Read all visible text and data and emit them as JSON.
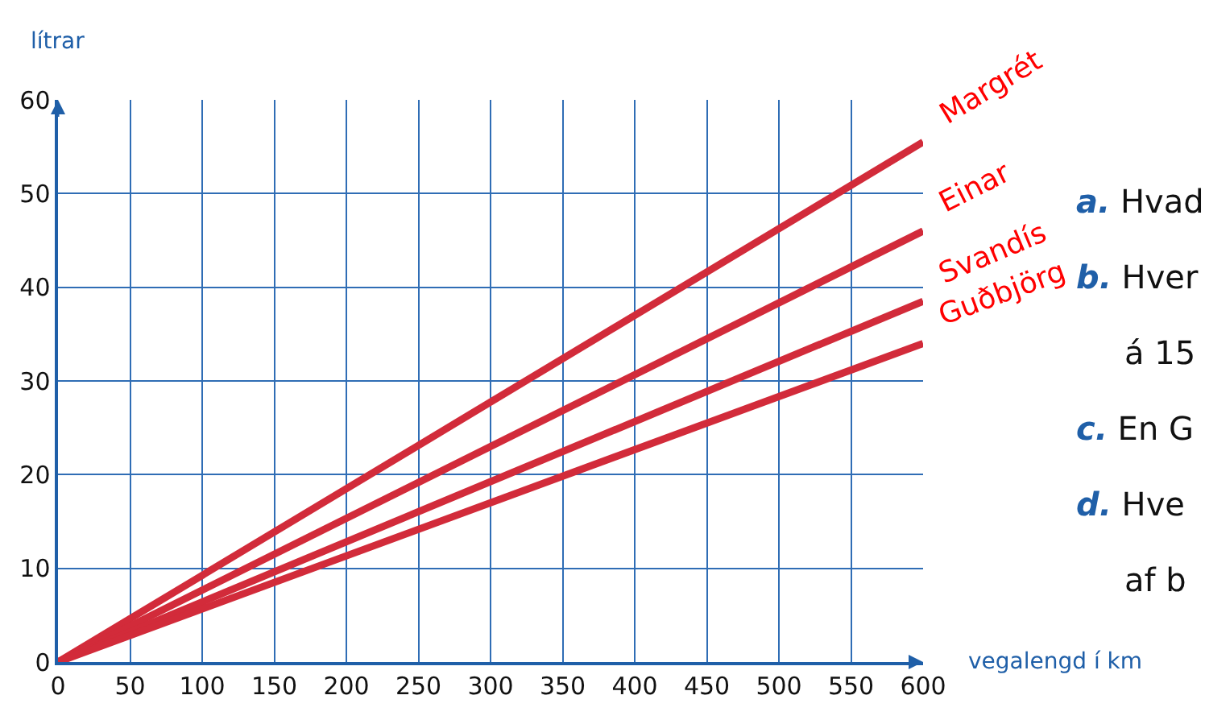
{
  "chart_data": {
    "type": "line",
    "xlabel": "vegalengd í km",
    "ylabel": "lítrar",
    "xlim": [
      0,
      600
    ],
    "ylim": [
      0,
      60
    ],
    "x": [
      0,
      600
    ],
    "xticks": [
      0,
      50,
      100,
      150,
      200,
      250,
      300,
      350,
      400,
      450,
      500,
      550,
      600
    ],
    "yticks": [
      0,
      10,
      20,
      30,
      40,
      50,
      60
    ],
    "grid": true,
    "legend": false,
    "marker": "none",
    "line_style": "solid",
    "series": [
      {
        "name": "Margrét",
        "color": "#d22b3a",
        "values": [
          0,
          55.5
        ]
      },
      {
        "name": "Einar",
        "color": "#d22b3a",
        "values": [
          0,
          46
        ]
      },
      {
        "name": "Svandís",
        "color": "#d22b3a",
        "values": [
          0,
          38.5
        ]
      },
      {
        "name": "Guðbjörg",
        "color": "#d22b3a",
        "values": [
          0,
          34
        ]
      }
    ],
    "annotations": [
      "a. Hvad",
      "b. Hver",
      "á 15",
      "c. En G",
      "d. Hve",
      "af b"
    ]
  }
}
